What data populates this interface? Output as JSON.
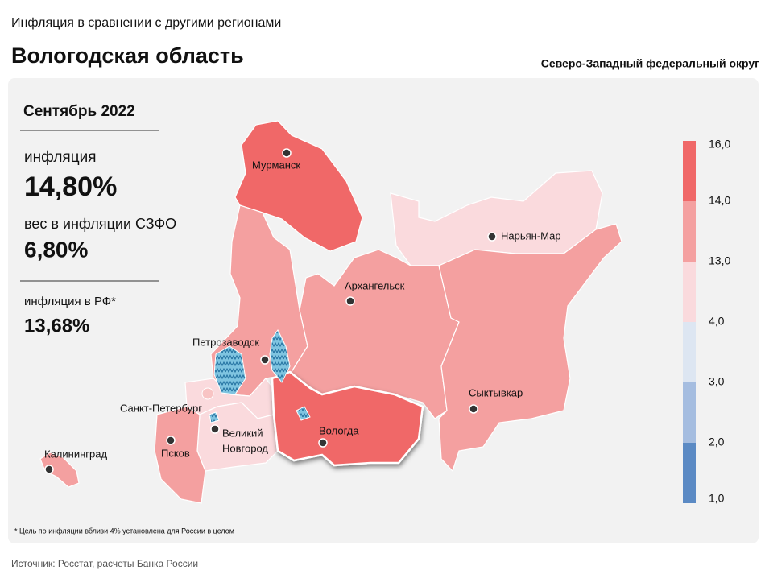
{
  "header": {
    "subtitle": "Инфляция в сравнении с другими регионами",
    "title": "Вологодская область",
    "district": "Северо-Западный федеральный округ"
  },
  "panel": {
    "period": "Сентябрь 2022",
    "inflation_label": "инфляция",
    "inflation_value": "14,80%",
    "weight_label": "вес в инфляции СЗФО",
    "weight_value": "6,80%",
    "rf_label": "инфляция в РФ*",
    "rf_value": "13,68%"
  },
  "legend": {
    "labels": [
      "16,0",
      "14,0",
      "13,0",
      "4,0",
      "3,0",
      "2,0",
      "1,0"
    ],
    "colors": [
      "#f06868",
      "#f4a0a0",
      "#fadadd",
      "#dde6f2",
      "#a5bde0",
      "#5b8ac4"
    ]
  },
  "cities": [
    "Мурманск",
    "Нарьян-Мар",
    "Архангельск",
    "Петрозаводск",
    "Санкт-Петербург",
    "Вологда",
    "Сыктывкар",
    "Калининград",
    "Псков"
  ],
  "novgorod": [
    "Великий",
    "Новгород"
  ],
  "footnote": "* Цель по инфляции вблизи 4% установлена для России в целом",
  "source": "Источник: Росстат, расчеты Банка России"
}
